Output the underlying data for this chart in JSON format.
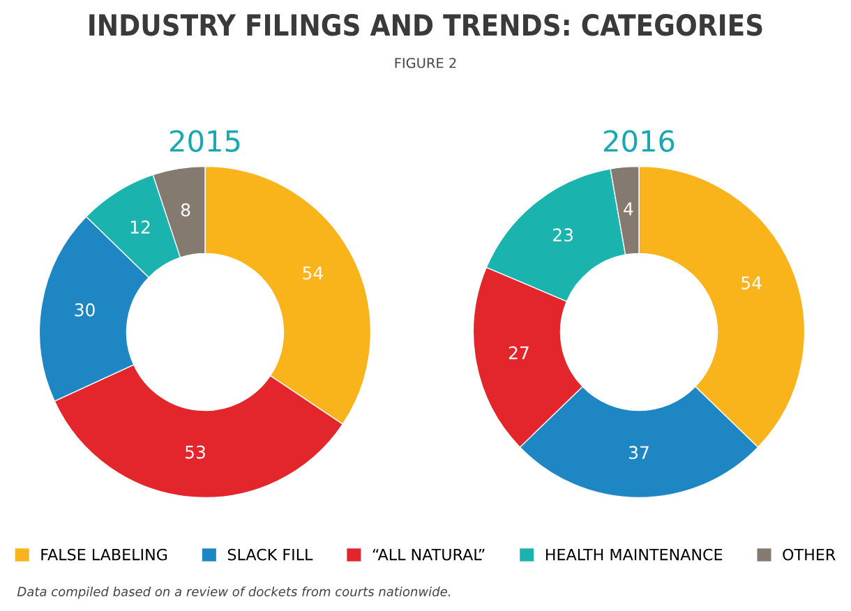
{
  "chart_data": [
    {
      "type": "other",
      "title": "INDUSTRY FILINGS AND TRENDS: CATEGORIES",
      "subtitle": "FIGURE 2",
      "annotations": [
        "Data compiled based on a review of dockets from courts nationwide."
      ]
    },
    {
      "type": "donut",
      "title": "2015",
      "categories": [
        "FALSE LABELING",
        "“ALL NATURAL”",
        "SLACK FILL",
        "HEALTH MAINTENANCE",
        "OTHER"
      ],
      "values": [
        54,
        53,
        30,
        12,
        8
      ],
      "colors": [
        "#f9b31b",
        "#e2262b",
        "#1f86c4",
        "#1bb3ad",
        "#857a6f"
      ],
      "data_labels": true,
      "legend": "bottom"
    },
    {
      "type": "donut",
      "title": "2016",
      "categories": [
        null,
        null,
        null,
        null,
        null
      ],
      "values": [
        54,
        37,
        27,
        23,
        4
      ],
      "colors": [
        "#f9b31b",
        "#1f86c4",
        "#e2262b",
        "#1bb3ad",
        "#857a6f"
      ],
      "data_labels": true,
      "legend": false
    }
  ]
}
